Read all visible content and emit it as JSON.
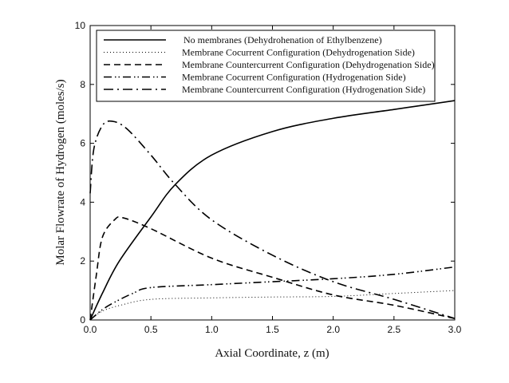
{
  "chart_data": {
    "type": "line",
    "title": "",
    "xlabel": "Axial Coordinate, z (m)",
    "ylabel": "Molar Flowrate of Hydrogen (moles/s)",
    "xlim": [
      0,
      3
    ],
    "ylim": [
      0,
      10
    ],
    "xticks": [
      "0.0",
      "0.5",
      "1.0",
      "1.5",
      "2.0",
      "2.5",
      "3.0"
    ],
    "yticks": [
      "0",
      "2",
      "4",
      "6",
      "8",
      "10"
    ],
    "grid": false,
    "legend_position": "top",
    "series": [
      {
        "name": "No membranes (Dehydrohenation of Ethylbenzene)",
        "style": "solid",
        "x": [
          0,
          0.1,
          0.24,
          0.5,
          0.7,
          1.0,
          1.5,
          2.0,
          2.5,
          3.0
        ],
        "y": [
          0,
          0.9,
          2.0,
          3.5,
          4.6,
          5.6,
          6.4,
          6.85,
          7.15,
          7.45
        ]
      },
      {
        "name": "Membrane Cocurrent Configuration (Dehydrogenation Side)",
        "style": "dotted",
        "x": [
          0,
          0.1,
          0.25,
          0.5,
          1.0,
          1.5,
          2.0,
          2.5,
          3.0
        ],
        "y": [
          0,
          0.3,
          0.5,
          0.7,
          0.75,
          0.78,
          0.8,
          0.9,
          1.0
        ]
      },
      {
        "name": "Membrane Countercurrent Configuration (Dehydrogenation Side)",
        "style": "dashed",
        "x": [
          0,
          0.05,
          0.1,
          0.2,
          0.27,
          0.5,
          1.0,
          1.5,
          2.0,
          2.5,
          3.0
        ],
        "y": [
          0,
          1.5,
          2.8,
          3.4,
          3.47,
          3.1,
          2.1,
          1.45,
          0.85,
          0.5,
          0.05
        ]
      },
      {
        "name": "Membrane Cocurrent Configuration (Hydrogenation Side)",
        "style": "dashdotdot",
        "x": [
          0,
          0.1,
          0.2,
          0.35,
          0.5,
          1.0,
          1.5,
          2.0,
          2.5,
          3.0
        ],
        "y": [
          0,
          0.35,
          0.6,
          0.9,
          1.1,
          1.2,
          1.3,
          1.4,
          1.55,
          1.8
        ]
      },
      {
        "name": "Membrane Countercurrent Configuration (Hydrogenation Side)",
        "style": "dashdot",
        "x": [
          0,
          0.03,
          0.1,
          0.18,
          0.3,
          0.5,
          0.7,
          1.0,
          1.5,
          2.0,
          2.5,
          3.0
        ],
        "y": [
          4.3,
          5.8,
          6.6,
          6.75,
          6.5,
          5.6,
          4.6,
          3.4,
          2.2,
          1.3,
          0.7,
          0.05
        ]
      }
    ]
  }
}
